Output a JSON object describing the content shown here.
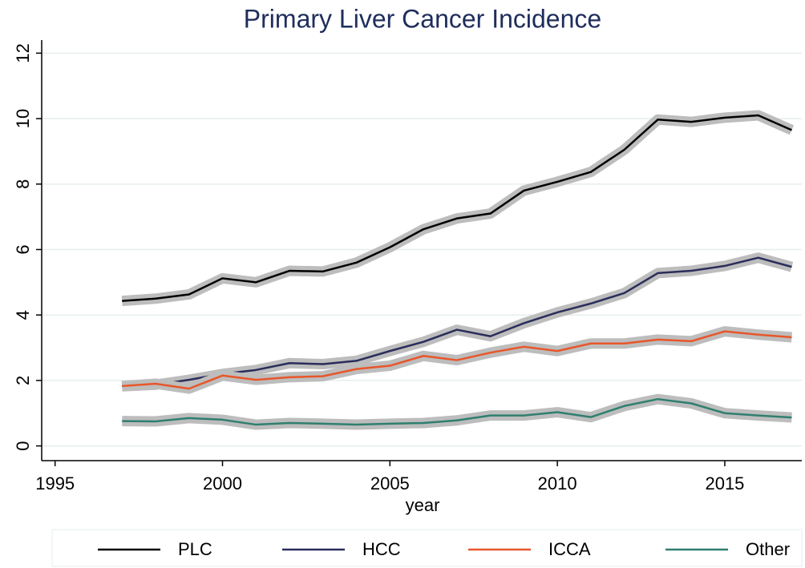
{
  "chart_data": {
    "type": "line",
    "title": "Primary Liver Cancer Incidence",
    "x_label": "year",
    "x": [
      1997,
      1998,
      1999,
      2000,
      2001,
      2002,
      2003,
      2004,
      2005,
      2006,
      2007,
      2008,
      2009,
      2010,
      2011,
      2012,
      2013,
      2014,
      2015,
      2016,
      2017
    ],
    "series": [
      {
        "name": "PLC",
        "color": "#000000",
        "values": [
          4.43,
          4.5,
          4.63,
          5.12,
          5.0,
          5.35,
          5.33,
          5.6,
          6.07,
          6.62,
          6.95,
          7.1,
          7.8,
          8.07,
          8.37,
          9.05,
          9.97,
          9.9,
          10.03,
          10.1,
          9.65
        ]
      },
      {
        "name": "HCC",
        "color": "#2a2d5a",
        "values": [
          1.82,
          1.87,
          2.02,
          2.2,
          2.32,
          2.53,
          2.5,
          2.6,
          2.9,
          3.18,
          3.55,
          3.35,
          3.75,
          4.08,
          4.35,
          4.67,
          5.28,
          5.35,
          5.5,
          5.75,
          5.47
        ]
      },
      {
        "name": "ICCA",
        "color": "#e8562a",
        "values": [
          1.83,
          1.9,
          1.75,
          2.15,
          2.02,
          2.1,
          2.13,
          2.35,
          2.45,
          2.75,
          2.62,
          2.85,
          3.03,
          2.9,
          3.13,
          3.13,
          3.25,
          3.2,
          3.5,
          3.4,
          3.32
        ]
      },
      {
        "name": "Other",
        "color": "#2f7f6f",
        "values": [
          0.76,
          0.75,
          0.85,
          0.8,
          0.65,
          0.7,
          0.68,
          0.65,
          0.68,
          0.7,
          0.78,
          0.93,
          0.93,
          1.03,
          0.88,
          1.22,
          1.43,
          1.3,
          1.0,
          0.93,
          0.87
        ]
      }
    ],
    "xlim": [
      1994.6,
      2017.3
    ],
    "xticks": [
      1995,
      2000,
      2005,
      2010,
      2015
    ],
    "ylim": [
      -0.45,
      12.4
    ],
    "yticks": [
      0,
      2,
      4,
      6,
      8,
      10,
      12
    ],
    "grid": true,
    "legend": "bottom"
  }
}
